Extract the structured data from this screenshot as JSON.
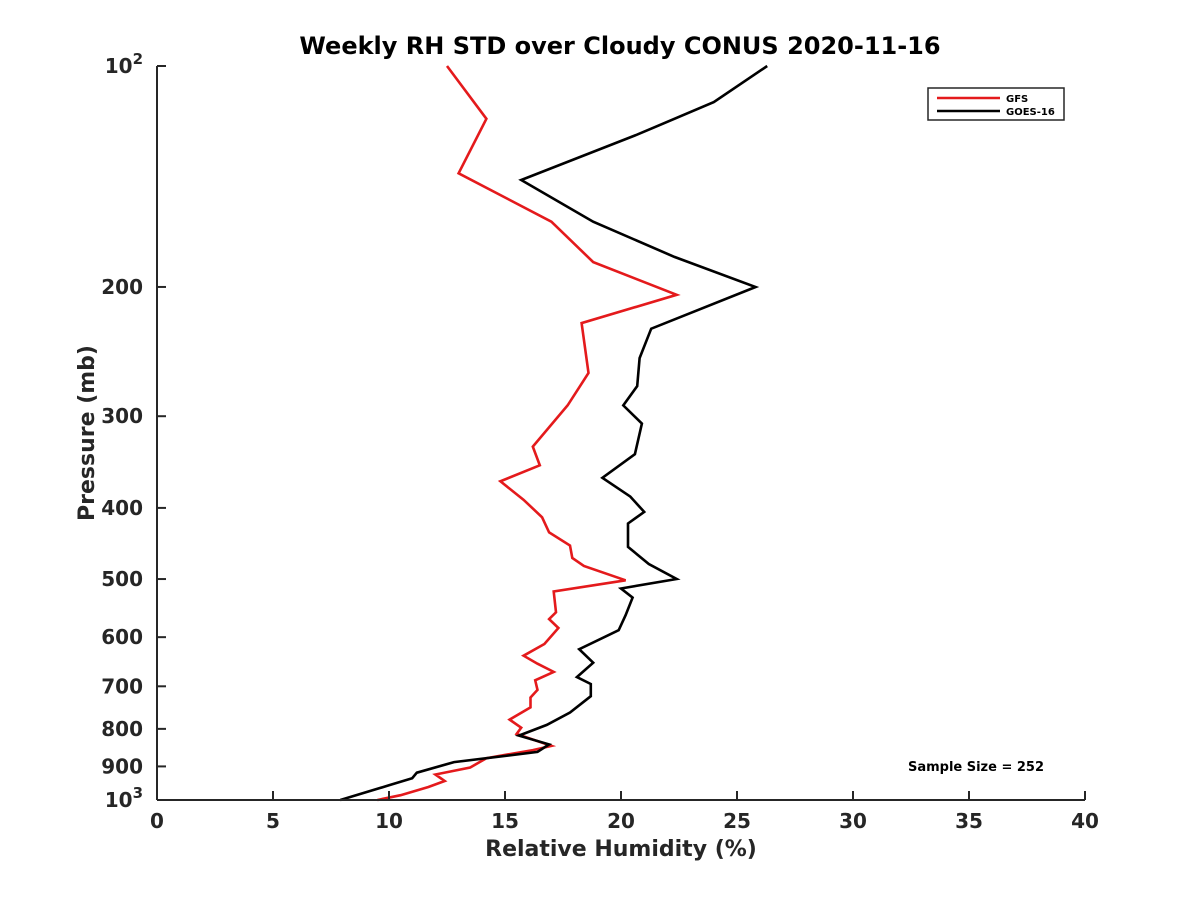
{
  "chart_data": {
    "type": "line",
    "title": "Weekly RH STD over Cloudy CONUS 2020-11-16",
    "xlabel": "Relative Humidity (%)",
    "ylabel": "Pressure (mb)",
    "xlim": [
      0,
      40
    ],
    "ylim": [
      100,
      1000
    ],
    "yscale": "log",
    "y_reversed": true,
    "grid": false,
    "legend_position": "top-right",
    "x_ticks": [
      0,
      5,
      10,
      15,
      20,
      25,
      30,
      35,
      40
    ],
    "x_tick_labels": [
      "0",
      "5",
      "10",
      "15",
      "20",
      "25",
      "30",
      "35",
      "40"
    ],
    "y_ticks": [
      {
        "value": 100,
        "base": "10",
        "exp": "2"
      },
      {
        "value": 200,
        "label": "200"
      },
      {
        "value": 300,
        "label": "300"
      },
      {
        "value": 400,
        "label": "400"
      },
      {
        "value": 500,
        "label": "500"
      },
      {
        "value": 600,
        "label": "600"
      },
      {
        "value": 700,
        "label": "700"
      },
      {
        "value": 800,
        "label": "800"
      },
      {
        "value": 900,
        "label": "900"
      },
      {
        "value": 1000,
        "base": "10",
        "exp": "3"
      }
    ],
    "annotation": "Sample Size = 252",
    "series": [
      {
        "name": "GFS",
        "color": "#e41a1c",
        "points": [
          [
            12.5,
            100
          ],
          [
            14.2,
            118
          ],
          [
            13.0,
            140
          ],
          [
            17.0,
            163
          ],
          [
            18.8,
            185
          ],
          [
            22.4,
            205
          ],
          [
            18.3,
            224
          ],
          [
            18.6,
            262
          ],
          [
            17.7,
            290
          ],
          [
            16.2,
            330
          ],
          [
            16.5,
            350
          ],
          [
            14.8,
            368
          ],
          [
            15.8,
            390
          ],
          [
            16.6,
            412
          ],
          [
            16.9,
            432
          ],
          [
            17.8,
            450
          ],
          [
            17.9,
            468
          ],
          [
            18.4,
            480
          ],
          [
            20.2,
            502
          ],
          [
            17.1,
            520
          ],
          [
            17.2,
            555
          ],
          [
            16.9,
            567
          ],
          [
            17.3,
            583
          ],
          [
            16.7,
            613
          ],
          [
            15.8,
            636
          ],
          [
            16.4,
            652
          ],
          [
            17.1,
            669
          ],
          [
            16.3,
            687
          ],
          [
            16.4,
            708
          ],
          [
            16.1,
            725
          ],
          [
            16.1,
            748
          ],
          [
            15.2,
            777
          ],
          [
            15.7,
            797
          ],
          [
            15.5,
            813
          ],
          [
            17.0,
            844
          ],
          [
            16.2,
            855
          ],
          [
            14.2,
            877
          ],
          [
            13.5,
            903
          ],
          [
            12.0,
            923
          ],
          [
            12.4,
            942
          ],
          [
            11.7,
            960
          ],
          [
            10.5,
            985
          ],
          [
            9.5,
            1000
          ]
        ]
      },
      {
        "name": "GOES-16",
        "color": "#000000",
        "points": [
          [
            26.3,
            100
          ],
          [
            24.0,
            112
          ],
          [
            20.7,
            124
          ],
          [
            15.7,
            143
          ],
          [
            18.8,
            163
          ],
          [
            22.3,
            182
          ],
          [
            25.8,
            200
          ],
          [
            21.3,
            228
          ],
          [
            20.8,
            250
          ],
          [
            20.7,
            273
          ],
          [
            20.1,
            290
          ],
          [
            20.9,
            307
          ],
          [
            20.6,
            338
          ],
          [
            19.2,
            364
          ],
          [
            20.4,
            386
          ],
          [
            21.0,
            405
          ],
          [
            20.3,
            420
          ],
          [
            20.3,
            452
          ],
          [
            21.2,
            477
          ],
          [
            22.4,
            500
          ],
          [
            20.0,
            515
          ],
          [
            20.5,
            530
          ],
          [
            20.2,
            560
          ],
          [
            19.9,
            587
          ],
          [
            18.2,
            623
          ],
          [
            18.8,
            650
          ],
          [
            18.1,
            680
          ],
          [
            18.7,
            695
          ],
          [
            18.7,
            722
          ],
          [
            17.8,
            760
          ],
          [
            16.8,
            790
          ],
          [
            15.6,
            817
          ],
          [
            16.9,
            840
          ],
          [
            16.4,
            860
          ],
          [
            12.8,
            888
          ],
          [
            11.2,
            918
          ],
          [
            11.0,
            934
          ],
          [
            10.0,
            955
          ],
          [
            7.9,
            1000
          ]
        ]
      }
    ]
  }
}
